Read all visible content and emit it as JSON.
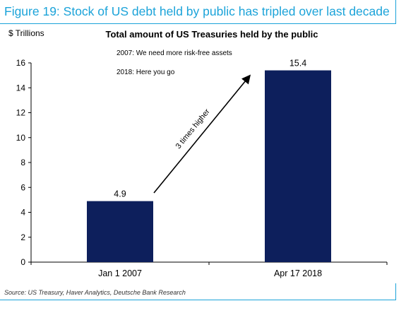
{
  "figure_title": "Figure 19: Stock of US debt held by public has tripled over last decade",
  "source": "Source: US Treasury, Haver Analytics, Deutsche Bank Research",
  "colors": {
    "accent": "#1ba3d9",
    "bar": "#0d1f5c"
  },
  "chart_data": {
    "type": "bar",
    "title": "Total amount of US Treasuries held by the public",
    "ylabel": "$ Trillions",
    "xlabel": "",
    "categories": [
      "Jan 1 2007",
      "Apr 17 2018"
    ],
    "values": [
      4.9,
      15.4
    ],
    "data_labels": [
      "4.9",
      "15.4"
    ],
    "ylim": [
      0,
      16
    ],
    "yticks": [
      0,
      2,
      4,
      6,
      8,
      10,
      12,
      14,
      16
    ],
    "grid": false,
    "annotations": {
      "note_2007": "2007: We need more risk-free assets",
      "note_2018": "2018: Here you go",
      "arrow_label": "3 times higher"
    }
  }
}
